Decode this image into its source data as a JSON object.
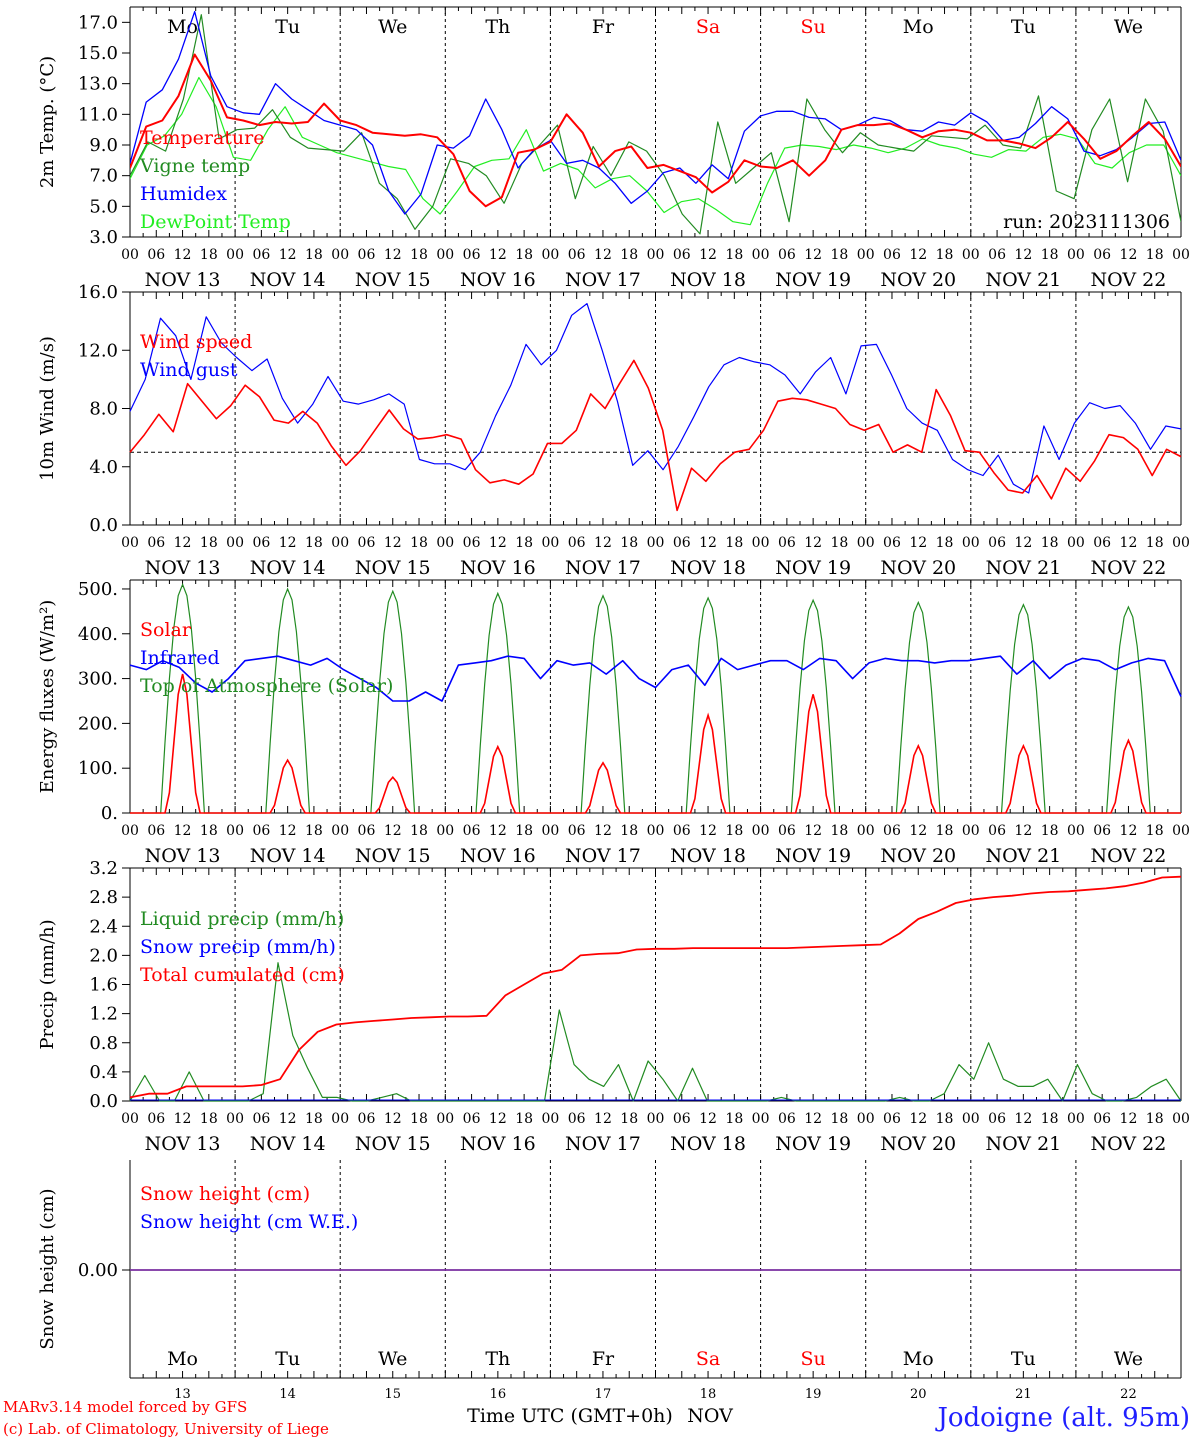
{
  "days": [
    "NOV 13",
    "NOV 14",
    "NOV 15",
    "NOV 16",
    "NOV 17",
    "NOV 18",
    "NOV 19",
    "NOV 20",
    "NOV 21",
    "NOV 22"
  ],
  "weekdays": [
    "Mo",
    "Tu",
    "We",
    "Th",
    "Fr",
    "Sa",
    "Su",
    "Mo",
    "Tu",
    "We"
  ],
  "weekend_days": [
    "Sa",
    "Su"
  ],
  "bottom_day_numbers": [
    "13",
    "14",
    "15",
    "16",
    "17",
    "18",
    "19",
    "20",
    "21",
    "22"
  ],
  "hour_ticks": [
    "00",
    "06",
    "12",
    "18"
  ],
  "last_hour_tick": "00",
  "footer": {
    "model": "MARv3.14 model forced by GFS",
    "copyright": "(c) Lab. of Climatology, University of Liege",
    "axis_title": "Time UTC (GMT+0h)",
    "month": "NOV",
    "station": "Jodoigne (alt. 95m)"
  },
  "colors": {
    "red": "#ff0000",
    "green": "#228b22",
    "blue": "#0000ff",
    "lime": "#22ee22",
    "purple": "#7a2fa0"
  },
  "chart_data": [
    {
      "id": "temp",
      "type": "line",
      "ylabel": "2m Temp. (°C)",
      "ylim": [
        3,
        18
      ],
      "yticks": [
        "3.0",
        "5.0",
        "7.0",
        "9.0",
        "11.0",
        "13.0",
        "15.0",
        "17.0"
      ],
      "run_label": "run: 2023111306",
      "x_step_hours": 3,
      "series": [
        {
          "name": "Temperature",
          "color": "#ff0000",
          "values": [
            7.5,
            10.2,
            10.6,
            12.2,
            14.9,
            13.2,
            10.8,
            10.6,
            10.3,
            10.5,
            10.4,
            10.5,
            11.7,
            10.6,
            10.3,
            9.8,
            9.7,
            9.6,
            9.7,
            9.5,
            8.4,
            6.0,
            5.0,
            5.6,
            8.5,
            8.7,
            9.2,
            11.0,
            9.8,
            7.6,
            8.6,
            8.9,
            7.5,
            7.7,
            7.3,
            6.9,
            5.9,
            6.6,
            8.0,
            7.6,
            7.5,
            8.0,
            7.0,
            8.0,
            10.0,
            10.3,
            10.3,
            10.4,
            10.0,
            9.5,
            9.9,
            10.0,
            9.8,
            9.3,
            9.3,
            9.1,
            8.8,
            9.5,
            10.5,
            9.4,
            8.1,
            8.6,
            9.6,
            10.5,
            9.4,
            7.6
          ]
        },
        {
          "name": "Vigne temp",
          "color": "#228b22",
          "values": [
            7.0,
            9.2,
            8.6,
            12.0,
            17.5,
            9.4,
            10.0,
            10.1,
            11.3,
            9.5,
            8.8,
            8.7,
            8.6,
            9.8,
            6.5,
            5.5,
            3.5,
            5.0,
            8.1,
            7.8,
            7.0,
            5.2,
            7.8,
            9.0,
            10.3,
            5.5,
            8.9,
            7.0,
            9.2,
            8.6,
            7.0,
            4.5,
            3.2,
            10.5,
            6.5,
            7.5,
            8.5,
            4.0,
            12.0,
            10.0,
            8.5,
            9.8,
            9.0,
            8.8,
            8.6,
            9.6,
            9.5,
            9.4,
            10.3,
            9.0,
            8.8,
            12.2,
            6.0,
            5.5,
            10.0,
            12.0,
            6.6,
            12.0,
            9.9,
            4.0
          ]
        },
        {
          "name": "Humidex",
          "color": "#0000ff",
          "values": [
            7.8,
            11.8,
            12.6,
            14.6,
            17.7,
            13.5,
            11.5,
            11.1,
            11.0,
            13.0,
            12.0,
            11.3,
            10.6,
            10.3,
            10.0,
            9.0,
            6.0,
            4.5,
            5.8,
            9.0,
            8.8,
            9.6,
            12.0,
            10.0,
            7.5,
            8.7,
            9.3,
            7.8,
            8.0,
            7.5,
            6.5,
            5.2,
            6.0,
            7.2,
            7.5,
            6.5,
            7.7,
            6.8,
            9.9,
            10.9,
            11.2,
            11.2,
            10.8,
            10.7,
            10.0,
            10.3,
            10.8,
            10.6,
            10.0,
            9.9,
            10.5,
            10.3,
            11.1,
            10.5,
            9.3,
            9.5,
            10.4,
            11.5,
            10.7,
            8.6,
            8.3,
            8.7,
            9.5,
            10.4,
            10.5,
            8.0
          ]
        },
        {
          "name": "DewPoint Temp",
          "color": "#22ee22",
          "values": [
            6.8,
            9.0,
            9.6,
            11.0,
            13.4,
            11.5,
            8.2,
            8.0,
            10.0,
            11.5,
            9.5,
            9.0,
            8.5,
            8.2,
            7.9,
            7.6,
            7.4,
            5.5,
            4.5,
            6.0,
            7.6,
            8.0,
            8.1,
            10.0,
            7.3,
            7.8,
            7.4,
            6.2,
            6.8,
            7.0,
            6.0,
            4.6,
            5.3,
            5.5,
            4.8,
            4.0,
            3.8,
            6.5,
            8.8,
            9.0,
            8.9,
            8.7,
            9.0,
            8.8,
            8.5,
            8.8,
            9.4,
            9.0,
            8.8,
            8.4,
            8.2,
            8.7,
            8.6,
            9.5,
            9.7,
            9.4,
            7.8,
            7.5,
            8.5,
            9.0,
            9.0,
            7.0
          ]
        }
      ]
    },
    {
      "id": "wind",
      "type": "line",
      "ylabel": "10m Wind (m/s)",
      "ylim": [
        0,
        16
      ],
      "yticks": [
        "0.0",
        "4.0",
        "8.0",
        "12.0",
        "16.0"
      ],
      "reference_line": 5.0,
      "x_step_hours": 3,
      "series": [
        {
          "name": "Wind speed",
          "color": "#ff0000",
          "values": [
            5.0,
            6.2,
            7.6,
            6.4,
            9.7,
            8.5,
            7.3,
            8.2,
            9.6,
            8.8,
            7.2,
            7.0,
            7.8,
            7.0,
            5.4,
            4.1,
            5.1,
            6.5,
            7.9,
            6.6,
            5.9,
            6.0,
            6.2,
            5.9,
            3.8,
            2.9,
            3.1,
            2.8,
            3.5,
            5.6,
            5.6,
            6.5,
            9.0,
            8.0,
            9.7,
            11.3,
            9.4,
            6.5,
            1.0,
            3.9,
            3.0,
            4.2,
            5.0,
            5.2,
            6.5,
            8.5,
            8.7,
            8.6,
            8.3,
            8.0,
            6.9,
            6.5,
            6.9,
            5.0,
            5.5,
            5.0,
            9.3,
            7.5,
            5.1,
            5.0,
            3.6,
            2.4,
            2.2,
            3.4,
            1.8,
            3.9,
            3.0,
            4.4,
            6.2,
            6.0,
            5.2,
            3.4,
            5.2,
            4.7
          ]
        },
        {
          "name": "Wind gust",
          "color": "#0000ff",
          "values": [
            7.8,
            10.0,
            14.2,
            13.0,
            10.0,
            14.3,
            12.5,
            11.5,
            10.6,
            11.4,
            8.7,
            7.0,
            8.3,
            10.2,
            8.5,
            8.3,
            8.6,
            9.0,
            8.3,
            4.5,
            4.2,
            4.2,
            3.8,
            5.0,
            7.5,
            9.6,
            12.4,
            11.0,
            12.0,
            14.4,
            15.2,
            12.0,
            8.5,
            4.1,
            5.1,
            3.8,
            5.4,
            7.4,
            9.5,
            11.0,
            11.5,
            11.2,
            11.0,
            10.3,
            9.0,
            10.5,
            11.5,
            9.0,
            12.3,
            12.4,
            10.3,
            8.0,
            7.0,
            6.5,
            4.5,
            3.8,
            3.4,
            4.8,
            2.8,
            2.2,
            6.8,
            4.5,
            7.0,
            8.4,
            8.0,
            8.2,
            7.0,
            5.2,
            6.8,
            6.6
          ]
        }
      ]
    },
    {
      "id": "energy",
      "type": "line",
      "ylabel": "Energy fluxes (W/m²)",
      "ylim": [
        0,
        520
      ],
      "yticks": [
        "0.",
        "100.",
        "200.",
        "300.",
        "400.",
        "500."
      ],
      "series": [
        {
          "name": "Solar",
          "color": "#ff0000",
          "daily_peaks": [
            310,
            118,
            80,
            148,
            112,
            218,
            265,
            150,
            150,
            162
          ]
        },
        {
          "name": "Infrared",
          "color": "#0000ff",
          "values": [
            330,
            320,
            340,
            325,
            290,
            270,
            300,
            340,
            345,
            350,
            340,
            330,
            345,
            320,
            300,
            280,
            250,
            250,
            270,
            250,
            330,
            335,
            340,
            350,
            345,
            300,
            340,
            330,
            335,
            310,
            340,
            300,
            280,
            320,
            330,
            285,
            345,
            320,
            330,
            340,
            340,
            320,
            345,
            340,
            300,
            335,
            345,
            340,
            340,
            335,
            340,
            340,
            345,
            350,
            310,
            340,
            300,
            330,
            345,
            340,
            320,
            335,
            345,
            340,
            260
          ]
        },
        {
          "name": "Top of Atmosphere (Solar)",
          "color": "#228b22",
          "daily_peaks": [
            510,
            500,
            495,
            490,
            485,
            480,
            475,
            470,
            465,
            460
          ]
        }
      ]
    },
    {
      "id": "precip",
      "type": "line",
      "ylabel": "Precip (mm/h)",
      "ylim": [
        0,
        3.2
      ],
      "yticks": [
        "0.0",
        "0.4",
        "0.8",
        "1.2",
        "1.6",
        "2.0",
        "2.4",
        "2.8",
        "3.2"
      ],
      "x_step_hours": 3,
      "series": [
        {
          "name": "Liquid precip (mm/h)",
          "color": "#228b22",
          "values": [
            0,
            0.35,
            0,
            0,
            0.4,
            0,
            0,
            0,
            0,
            0.1,
            1.9,
            0.9,
            0.45,
            0.05,
            0.05,
            0,
            0,
            0.05,
            0.1,
            0,
            0,
            0,
            0,
            0,
            0,
            0,
            0,
            0,
            0,
            1.25,
            0.5,
            0.3,
            0.2,
            0.5,
            0,
            0.55,
            0.3,
            0,
            0.45,
            0,
            0,
            0,
            0,
            0,
            0.05,
            0,
            0,
            0,
            0,
            0,
            0,
            0,
            0.05,
            0,
            0,
            0.1,
            0.5,
            0.3,
            0.8,
            0.3,
            0.2,
            0.2,
            0.3,
            0,
            0.5,
            0.1,
            0,
            0,
            0.05,
            0.2,
            0.3,
            0
          ]
        },
        {
          "name": "Snow precip (mm/h)",
          "color": "#0000ff",
          "values": []
        },
        {
          "name": "Total cumulated (cm)",
          "color": "#ff0000",
          "values": [
            0.05,
            0.1,
            0.1,
            0.2,
            0.2,
            0.2,
            0.2,
            0.22,
            0.3,
            0.7,
            0.95,
            1.05,
            1.08,
            1.1,
            1.12,
            1.14,
            1.15,
            1.16,
            1.16,
            1.17,
            1.45,
            1.6,
            1.75,
            1.8,
            2.0,
            2.02,
            2.03,
            2.08,
            2.09,
            2.09,
            2.1,
            2.1,
            2.1,
            2.1,
            2.1,
            2.1,
            2.11,
            2.12,
            2.13,
            2.14,
            2.15,
            2.3,
            2.5,
            2.6,
            2.72,
            2.77,
            2.8,
            2.82,
            2.85,
            2.87,
            2.88,
            2.9,
            2.92,
            2.95,
            3.0,
            3.07,
            3.08
          ]
        }
      ]
    },
    {
      "id": "snow",
      "type": "line",
      "ylabel": "Snow height (cm)",
      "yticks": [
        "0.00"
      ],
      "series": [
        {
          "name": "Snow height (cm)",
          "color": "#ff0000",
          "values": [
            0
          ]
        },
        {
          "name": "Snow height (cm W.E.)",
          "color": "#0000ff",
          "values": [
            0
          ]
        }
      ]
    }
  ]
}
